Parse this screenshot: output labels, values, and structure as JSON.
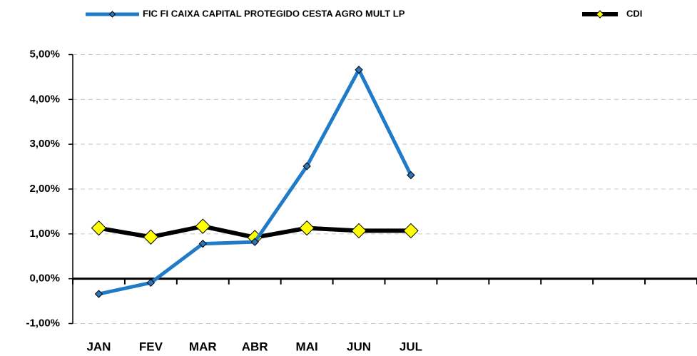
{
  "chart_data": {
    "type": "line",
    "categories": [
      "JAN",
      "FEV",
      "MAR",
      "ABR",
      "MAI",
      "JUN",
      "JUL",
      null,
      null,
      null,
      null,
      null
    ],
    "series": [
      {
        "name": "FIC FI CAIXA CAPITAL PROTEGIDO CESTA AGRO MULT LP",
        "color": "#1f7bc8",
        "marker_color": "#2e75b6",
        "values": [
          -0.34,
          -0.09,
          0.78,
          0.82,
          2.51,
          4.66,
          2.31,
          null,
          null,
          null,
          null,
          null
        ]
      },
      {
        "name": "CDI",
        "color": "#000000",
        "marker_color": "#ffff00",
        "values": [
          1.13,
          0.93,
          1.17,
          0.92,
          1.13,
          1.07,
          1.07,
          null,
          null,
          null,
          null,
          null
        ]
      }
    ],
    "ylim": [
      -1,
      5
    ],
    "yticks": [
      {
        "value": -1,
        "label": "-1,00%"
      },
      {
        "value": 0,
        "label": "0,00%"
      },
      {
        "value": 1,
        "label": "1,00%"
      },
      {
        "value": 2,
        "label": "2,00%"
      },
      {
        "value": 3,
        "label": "3,00%"
      },
      {
        "value": 4,
        "label": "4,00%"
      },
      {
        "value": 5,
        "label": "5,00%"
      }
    ],
    "grid": true
  }
}
